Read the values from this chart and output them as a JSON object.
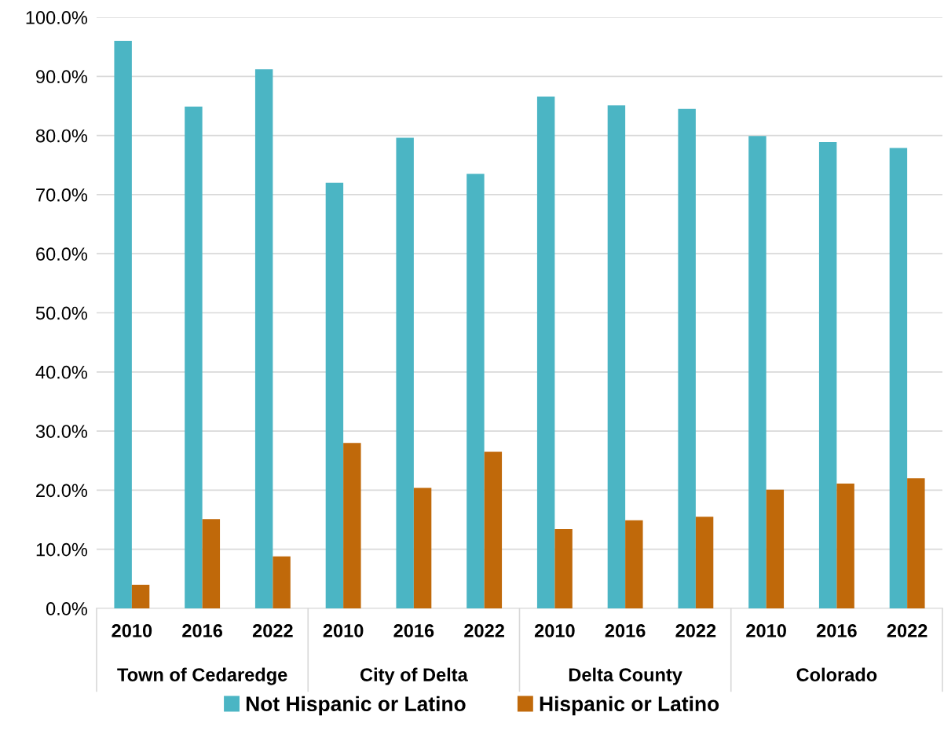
{
  "chart_data": {
    "type": "bar",
    "categories": [
      "2010",
      "2016",
      "2022",
      "2010",
      "2016",
      "2022",
      "2010",
      "2016",
      "2022",
      "2010",
      "2016",
      "2022"
    ],
    "annotations": [
      "Town of Cedaredge",
      "City of Delta",
      "Delta County",
      "Colorado"
    ],
    "series": [
      {
        "name": "Not Hispanic or Latino",
        "color": "#4bb5c4",
        "values": [
          96.0,
          84.9,
          91.2,
          72.0,
          79.6,
          73.5,
          86.6,
          85.1,
          84.5,
          79.9,
          78.9,
          77.9
        ]
      },
      {
        "name": "Hispanic or Latino",
        "color": "#c0690a",
        "values": [
          4.0,
          15.1,
          8.8,
          28.0,
          20.4,
          26.5,
          13.4,
          14.9,
          15.5,
          20.1,
          21.1,
          22.0
        ]
      }
    ],
    "ylim": [
      0,
      100
    ],
    "yticks": [
      {
        "value": 0,
        "label": "0.0%"
      },
      {
        "value": 10,
        "label": "10.0%"
      },
      {
        "value": 20,
        "label": "20.0%"
      },
      {
        "value": 30,
        "label": "30.0%"
      },
      {
        "value": 40,
        "label": "40.0%"
      },
      {
        "value": 50,
        "label": "50.0%"
      },
      {
        "value": 60,
        "label": "60.0%"
      },
      {
        "value": 70,
        "label": "70.0%"
      },
      {
        "value": 80,
        "label": "80.0%"
      },
      {
        "value": 90,
        "label": "90.0%"
      },
      {
        "value": 100,
        "label": "100.0%"
      }
    ],
    "grid": "y",
    "legend": "bottom"
  }
}
